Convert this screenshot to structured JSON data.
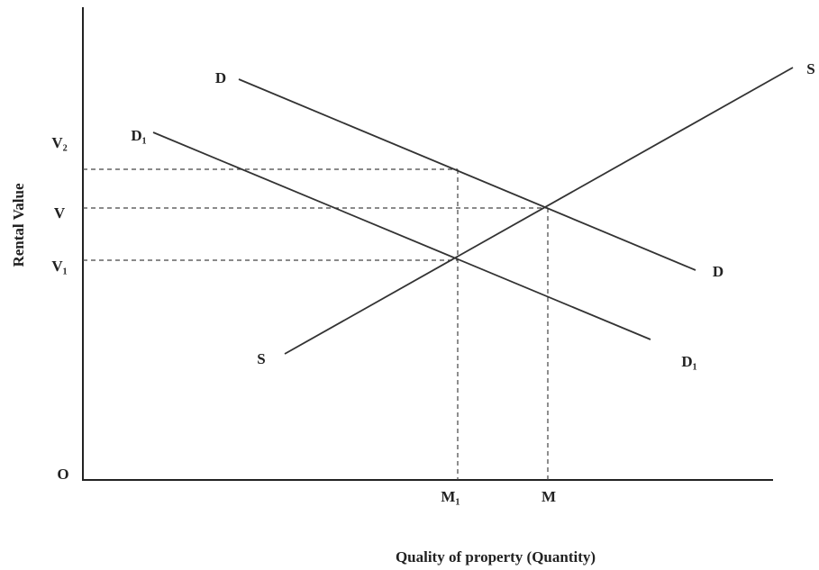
{
  "axes": {
    "y_label": "Rental Value",
    "x_label": "Quality of property (Quantity)",
    "origin": "O"
  },
  "y_ticks": [
    "V₂",
    "V",
    "V₁"
  ],
  "x_ticks": [
    "M₁",
    "M"
  ],
  "curves": {
    "demand": {
      "start_label": "D",
      "end_label": "D"
    },
    "demand_1": {
      "start_label": "D₁",
      "end_label": "D₁"
    },
    "supply": {
      "start_label": "S",
      "end_label": "S"
    }
  }
}
